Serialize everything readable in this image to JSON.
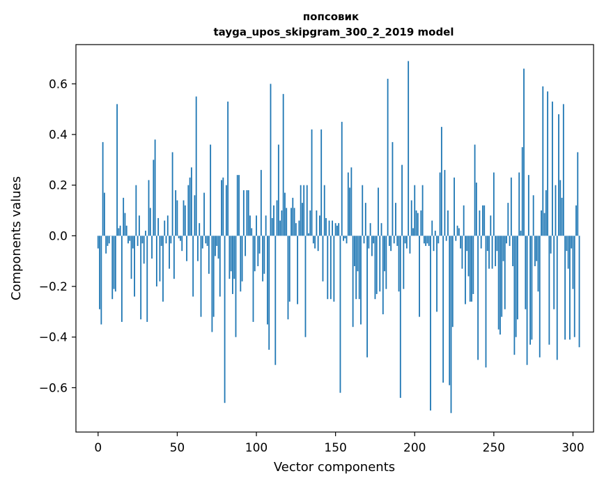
{
  "chart_data": {
    "type": "bar",
    "title": [
      "попсовик",
      "tayga_upos_skipgram_300_2_2019 model"
    ],
    "xlabel": "Vector components",
    "ylabel": "Components values",
    "xlim": [
      -14,
      313
    ],
    "ylim": [
      -0.775,
      0.755
    ],
    "xticks": [
      0,
      50,
      100,
      150,
      200,
      250,
      300
    ],
    "xtick_labels": [
      "0",
      "50",
      "100",
      "150",
      "200",
      "250",
      "300"
    ],
    "yticks": [
      -0.6,
      -0.4,
      -0.2,
      0.0,
      0.2,
      0.4,
      0.6
    ],
    "ytick_labels": [
      "−0.6",
      "−0.4",
      "−0.2",
      "0.0",
      "0.2",
      "0.4",
      "0.6"
    ],
    "grid": false,
    "bar_color": "#1f77b4",
    "values": [
      -0.05,
      -0.29,
      -0.35,
      0.37,
      0.17,
      -0.07,
      -0.04,
      -0.03,
      0.0,
      -0.25,
      -0.21,
      -0.22,
      0.52,
      0.03,
      0.04,
      -0.34,
      0.15,
      0.09,
      0.04,
      -0.03,
      -0.02,
      -0.17,
      -0.05,
      -0.24,
      0.2,
      -0.04,
      0.08,
      -0.33,
      -0.03,
      -0.11,
      0.02,
      -0.34,
      0.22,
      0.11,
      -0.09,
      0.3,
      0.38,
      -0.2,
      0.07,
      -0.18,
      -0.04,
      -0.26,
      0.06,
      -0.03,
      0.08,
      -0.13,
      -0.03,
      0.33,
      -0.17,
      0.18,
      0.14,
      -0.01,
      -0.02,
      -0.06,
      0.14,
      0.12,
      -0.1,
      0.2,
      0.23,
      0.27,
      -0.24,
      0.16,
      0.55,
      -0.1,
      0.05,
      -0.32,
      -0.05,
      0.17,
      -0.03,
      -0.04,
      -0.15,
      0.36,
      -0.38,
      -0.32,
      -0.08,
      -0.04,
      -0.09,
      -0.24,
      0.22,
      0.23,
      -0.66,
      0.2,
      0.53,
      -0.17,
      -0.14,
      -0.23,
      -0.17,
      -0.4,
      0.24,
      0.24,
      -0.22,
      -0.18,
      0.18,
      -0.08,
      0.18,
      0.18,
      0.08,
      0.03,
      -0.34,
      -0.14,
      0.08,
      -0.12,
      -0.07,
      0.26,
      -0.18,
      -0.15,
      0.08,
      -0.35,
      -0.45,
      0.6,
      0.07,
      0.12,
      -0.51,
      0.14,
      0.36,
      0.06,
      0.1,
      0.56,
      0.17,
      0.11,
      -0.33,
      -0.26,
      0.11,
      0.15,
      0.11,
      0.05,
      -0.27,
      0.06,
      0.2,
      0.13,
      0.2,
      -0.4,
      0.2,
      0.01,
      0.1,
      0.42,
      -0.03,
      -0.05,
      0.1,
      -0.06,
      0.08,
      0.42,
      -0.18,
      0.2,
      0.07,
      -0.25,
      0.06,
      -0.25,
      0.06,
      -0.26,
      0.05,
      0.04,
      0.05,
      -0.62,
      0.45,
      -0.02,
      -0.01,
      -0.03,
      0.25,
      0.19,
      0.27,
      -0.36,
      -0.12,
      -0.25,
      -0.14,
      -0.25,
      -0.35,
      0.2,
      -0.03,
      0.13,
      -0.48,
      -0.05,
      0.05,
      -0.08,
      -0.03,
      -0.25,
      -0.23,
      0.19,
      -0.22,
      0.05,
      -0.31,
      -0.14,
      -0.21,
      0.62,
      -0.04,
      -0.06,
      0.37,
      -0.03,
      0.13,
      -0.04,
      -0.22,
      -0.64,
      0.28,
      -0.21,
      -0.03,
      -0.05,
      0.69,
      -0.07,
      0.14,
      0.03,
      0.2,
      0.1,
      0.09,
      -0.32,
      0.1,
      0.2,
      -0.03,
      -0.04,
      -0.03,
      -0.04,
      -0.69,
      0.06,
      -0.06,
      0.02,
      -0.3,
      -0.03,
      0.25,
      0.43,
      -0.58,
      0.26,
      -0.02,
      0.1,
      -0.59,
      -0.7,
      -0.36,
      0.23,
      -0.02,
      0.04,
      0.03,
      -0.05,
      -0.13,
      0.12,
      -0.27,
      -0.06,
      -0.16,
      -0.26,
      -0.26,
      -0.23,
      0.36,
      0.21,
      -0.49,
      0.1,
      -0.05,
      0.12,
      0.12,
      -0.52,
      -0.06,
      -0.13,
      0.08,
      -0.13,
      0.25,
      -0.12,
      -0.06,
      -0.37,
      -0.39,
      -0.32,
      -0.1,
      -0.29,
      -0.03,
      0.13,
      -0.04,
      0.23,
      -0.12,
      -0.47,
      -0.4,
      -0.33,
      0.25,
      0.02,
      0.35,
      0.66,
      -0.29,
      -0.51,
      0.24,
      -0.43,
      -0.41,
      0.16,
      -0.12,
      -0.1,
      -0.22,
      -0.48,
      0.1,
      0.59,
      0.09,
      0.18,
      0.57,
      -0.43,
      -0.07,
      0.53,
      -0.29,
      0.2,
      -0.49,
      0.48,
      0.22,
      0.15,
      0.52,
      -0.41,
      -0.06,
      -0.13,
      -0.41,
      -0.05,
      -0.21,
      -0.4,
      0.12,
      0.33,
      -0.44
    ]
  }
}
